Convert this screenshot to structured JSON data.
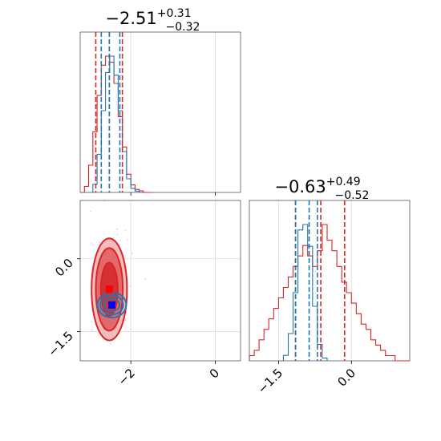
{
  "chart_data": {
    "type": "corner",
    "colors": {
      "series_a": "#1f77b4",
      "series_b": "#d62728"
    },
    "grid": true,
    "parameters": [
      {
        "title": {
          "base": "−2.51",
          "sup": "+0.31",
          "sub": "−0.32"
        },
        "range": [
          -3.2,
          0.6
        ],
        "ticks": [
          -2,
          0
        ],
        "tick_labels": [
          "−2",
          "0"
        ],
        "quantiles_series_b": [
          -2.83,
          -2.51,
          -2.2
        ],
        "quantiles_series_a": [
          -2.7,
          -2.51,
          -2.26
        ],
        "hist_series_b": {
          "bins": [
            -3.2,
            -3.1,
            -3.0,
            -2.9,
            -2.8,
            -2.7,
            -2.6,
            -2.5,
            -2.4,
            -2.3,
            -2.2,
            -2.1,
            -2.0,
            -1.9,
            -1.8,
            -1.7,
            -1.6,
            -1.5
          ],
          "counts": [
            0,
            4,
            18,
            40,
            64,
            84,
            90,
            86,
            72,
            50,
            30,
            12,
            5,
            2,
            1,
            0,
            0
          ]
        },
        "hist_series_a": {
          "bins": [
            -3.0,
            -2.9,
            -2.8,
            -2.7,
            -2.6,
            -2.5,
            -2.4,
            -2.3,
            -2.2,
            -2.1,
            -2.0,
            -1.9,
            -1.8,
            -1.7
          ],
          "counts": [
            0,
            6,
            28,
            60,
            88,
            100,
            86,
            60,
            30,
            10,
            3,
            1,
            0
          ]
        }
      },
      {
        "title": {
          "base": "−0.63",
          "sup": "+0.49",
          "sub": "−0.52"
        },
        "range": [
          -2.1,
          1.2
        ],
        "ticks": [
          -1.5,
          0.0
        ],
        "tick_labels": [
          "−1.5",
          "0.0"
        ],
        "quantiles_series_b": [
          -1.15,
          -0.63,
          -0.14
        ],
        "quantiles_series_a": [
          -1.15,
          -0.87,
          -0.7
        ],
        "hist_series_b": {
          "bins": [
            -2.1,
            -2.0,
            -1.9,
            -1.8,
            -1.7,
            -1.6,
            -1.5,
            -1.4,
            -1.3,
            -1.2,
            -1.1,
            -1.0,
            -0.9,
            -0.8,
            -0.7,
            -0.6,
            -0.5,
            -0.4,
            -0.3,
            -0.2,
            -0.1,
            0.0,
            0.1,
            0.2,
            0.3,
            0.4,
            0.5,
            0.6,
            0.7,
            0.8,
            0.9,
            1.0,
            1.1,
            1.2
          ],
          "counts": [
            1,
            2,
            4,
            6,
            8,
            10,
            12,
            14,
            16,
            18,
            20,
            22,
            20,
            18,
            21,
            26,
            23,
            21,
            18,
            15,
            13,
            11,
            9,
            7,
            6,
            4,
            3,
            2,
            1,
            1,
            0,
            0,
            0
          ]
        },
        "hist_series_a": {
          "bins": [
            -1.5,
            -1.4,
            -1.3,
            -1.2,
            -1.1,
            -1.0,
            -0.9,
            -0.8,
            -0.7,
            -0.6,
            -0.5
          ],
          "counts": [
            0,
            4,
            20,
            50,
            96,
            100,
            84,
            40,
            12,
            2
          ]
        }
      }
    ],
    "scatter_2d": {
      "x_range": [
        -3.2,
        0.6
      ],
      "y_range": [
        -2.1,
        1.2
      ],
      "series_b": {
        "marker": [
          -2.51,
          -0.63
        ],
        "contours": [
          {
            "cx": -2.51,
            "cy": -0.63,
            "rx": 0.2,
            "ry": 0.55
          },
          {
            "cx": -2.51,
            "cy": -0.63,
            "rx": 0.32,
            "ry": 0.85
          },
          {
            "cx": -2.51,
            "cy": -0.63,
            "rx": 0.42,
            "ry": 1.05
          }
        ]
      },
      "series_a": {
        "marker": [
          -2.45,
          -0.95
        ],
        "contours": [
          {
            "cx": -2.45,
            "cy": -0.95,
            "rx": 0.18,
            "ry": 0.13
          },
          {
            "cx": -2.45,
            "cy": -0.95,
            "rx": 0.27,
            "ry": 0.2
          },
          {
            "cx": -2.45,
            "cy": -0.95,
            "rx": 0.34,
            "ry": 0.26
          }
        ]
      }
    }
  }
}
